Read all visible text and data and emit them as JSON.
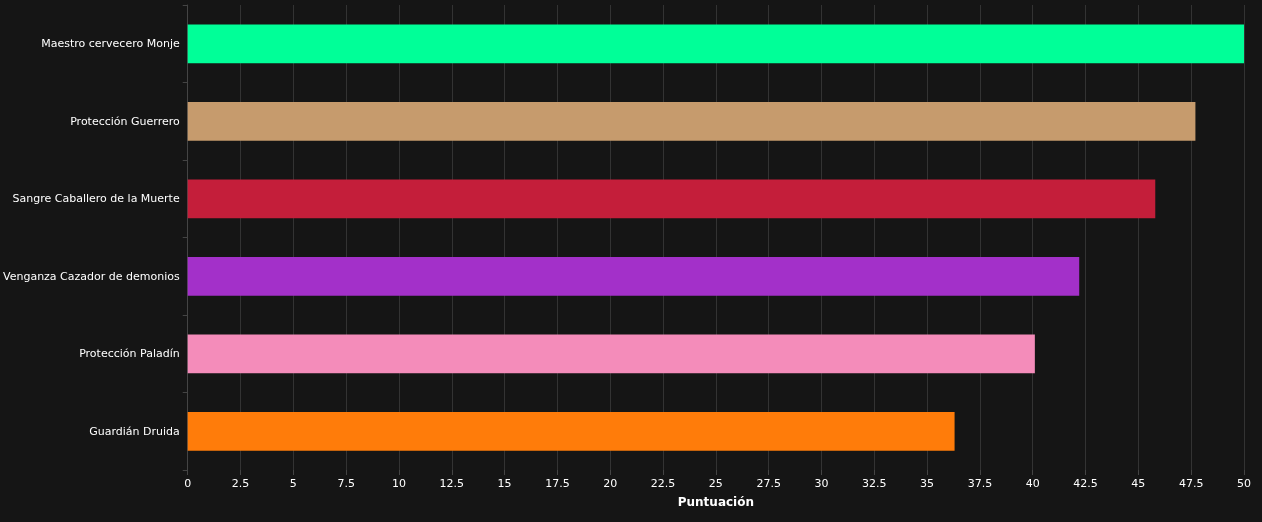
{
  "chart_data": {
    "type": "bar",
    "orientation": "horizontal",
    "xlabel": "Puntuación",
    "categories": [
      "Maestro cervecero Monje",
      "Protección Guerrero",
      "Sangre Caballero de la Muerte",
      "Venganza Cazador de demonios",
      "Protección Paladín",
      "Guardián Druida"
    ],
    "values": [
      50,
      47.7,
      45.8,
      42.2,
      40.1,
      36.3
    ],
    "colors": [
      "#00ff98",
      "#c69b6d",
      "#c41e3a",
      "#a330c9",
      "#f48cba",
      "#ff7c0a"
    ],
    "xlim": [
      0,
      50
    ],
    "xticks": [
      0,
      2.5,
      5,
      7.5,
      10,
      12.5,
      15,
      17.5,
      20,
      22.5,
      25,
      27.5,
      30,
      32.5,
      35,
      37.5,
      40,
      42.5,
      45,
      47.5,
      50
    ],
    "grid": "x"
  }
}
